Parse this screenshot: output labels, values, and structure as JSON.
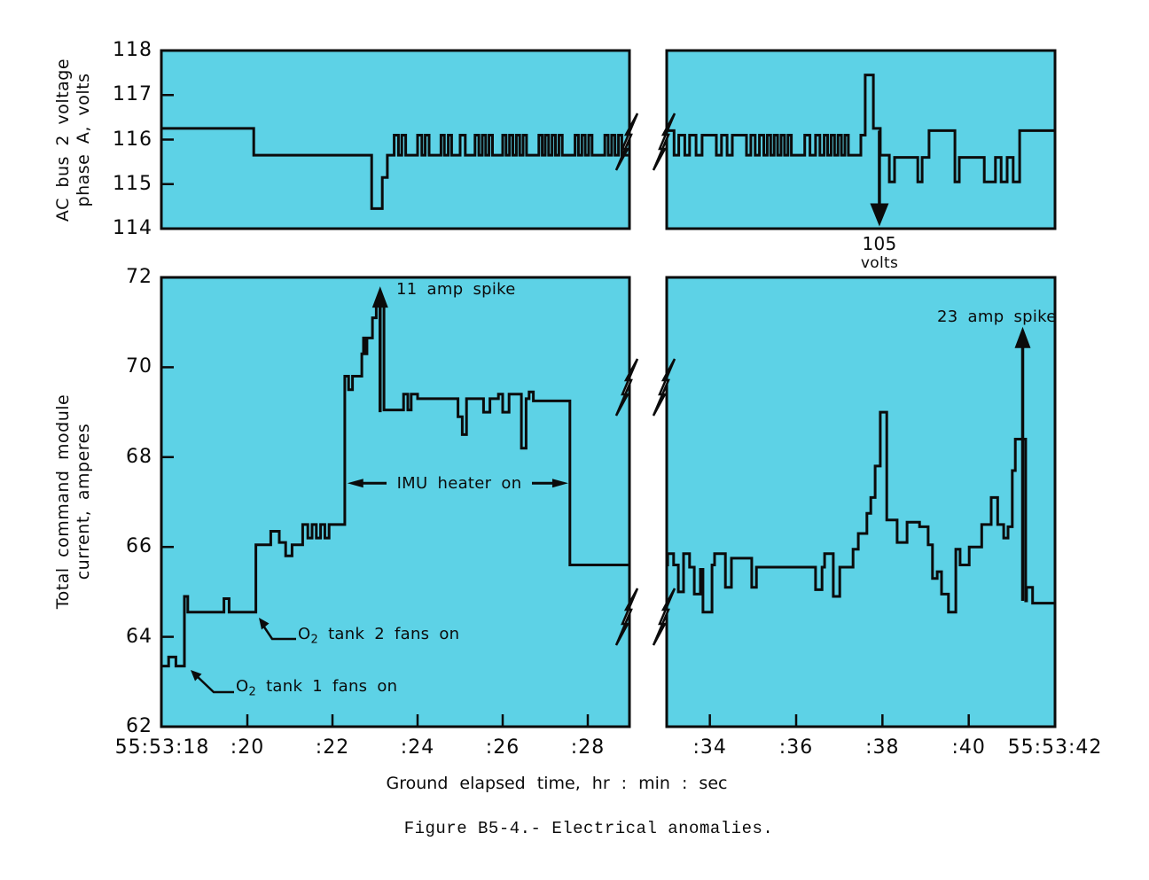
{
  "figure": {
    "caption": "Figure B5-4.- Electrical anomalies.",
    "colors": {
      "panel_fill": "#5dd2e6",
      "line": "#0b0b0b",
      "background": "#ffffff"
    }
  },
  "xaxis": {
    "title": "Ground elapsed time,  hr : min : sec",
    "left_ticks": [
      {
        "t": 18,
        "label": "55:53:18"
      },
      {
        "t": 20,
        "label": ":20"
      },
      {
        "t": 22,
        "label": ":22"
      },
      {
        "t": 24,
        "label": ":24"
      },
      {
        "t": 26,
        "label": ":26"
      },
      {
        "t": 28,
        "label": ":28"
      }
    ],
    "right_ticks": [
      {
        "t": 34,
        "label": ":34"
      },
      {
        "t": 36,
        "label": ":36"
      },
      {
        "t": 38,
        "label": ":38"
      },
      {
        "t": 40,
        "label": ":40"
      },
      {
        "t": 42,
        "label": "55:53:42"
      }
    ]
  },
  "chart_data": [
    {
      "type": "line",
      "id": "ac-bus-2-voltage",
      "ylabel_line1": "AC bus 2 voltage",
      "ylabel_line2": "phase A,  volts",
      "ylim": [
        114,
        118
      ],
      "yticks": [
        {
          "v": 118,
          "label": "118"
        },
        {
          "v": 117,
          "label": "117"
        },
        {
          "v": 116,
          "label": "116"
        },
        {
          "v": 115,
          "label": "115"
        },
        {
          "v": 114,
          "label": "114"
        }
      ],
      "segments": {
        "left": {
          "trange": [
            18,
            28.98
          ],
          "steps": [
            [
              18,
              116.25
            ],
            [
              20.15,
              115.65
            ],
            [
              22.92,
              114.45
            ],
            [
              23.17,
              115.15
            ],
            [
              23.29,
              115.65
            ],
            [
              23.45,
              116.1
            ],
            [
              23.55,
              115.65
            ],
            [
              23.63,
              116.1
            ],
            [
              23.72,
              115.65
            ],
            [
              24.0,
              116.1
            ],
            [
              24.1,
              115.65
            ],
            [
              24.18,
              116.1
            ],
            [
              24.27,
              115.65
            ],
            [
              24.55,
              116.1
            ],
            [
              24.63,
              115.65
            ],
            [
              24.72,
              116.1
            ],
            [
              24.8,
              115.65
            ],
            [
              25.0,
              116.1
            ],
            [
              25.12,
              115.65
            ],
            [
              25.35,
              116.1
            ],
            [
              25.44,
              115.65
            ],
            [
              25.52,
              116.1
            ],
            [
              25.6,
              115.65
            ],
            [
              25.68,
              116.1
            ],
            [
              25.76,
              115.65
            ],
            [
              26.0,
              116.1
            ],
            [
              26.08,
              115.65
            ],
            [
              26.16,
              116.1
            ],
            [
              26.24,
              115.65
            ],
            [
              26.32,
              116.1
            ],
            [
              26.4,
              115.65
            ],
            [
              26.48,
              116.1
            ],
            [
              26.56,
              115.65
            ],
            [
              26.85,
              116.1
            ],
            [
              26.93,
              115.65
            ],
            [
              27.0,
              116.1
            ],
            [
              27.08,
              115.65
            ],
            [
              27.16,
              116.1
            ],
            [
              27.24,
              115.65
            ],
            [
              27.32,
              116.1
            ],
            [
              27.4,
              115.65
            ],
            [
              27.7,
              116.1
            ],
            [
              27.78,
              115.65
            ],
            [
              27.86,
              116.1
            ],
            [
              27.94,
              115.65
            ],
            [
              28.02,
              116.1
            ],
            [
              28.1,
              115.65
            ],
            [
              28.4,
              116.1
            ],
            [
              28.48,
              115.65
            ],
            [
              28.56,
              116.1
            ],
            [
              28.64,
              115.65
            ],
            [
              28.72,
              116.1
            ],
            [
              28.8,
              115.65
            ],
            [
              28.98,
              115.65
            ]
          ]
        },
        "right": {
          "trange": [
            33.0,
            42.0
          ],
          "steps": [
            [
              33.0,
              116.2
            ],
            [
              33.17,
              115.65
            ],
            [
              33.28,
              116.1
            ],
            [
              33.42,
              115.65
            ],
            [
              33.53,
              116.1
            ],
            [
              33.68,
              115.65
            ],
            [
              33.82,
              116.1
            ],
            [
              34.15,
              115.65
            ],
            [
              34.27,
              116.1
            ],
            [
              34.4,
              115.65
            ],
            [
              34.52,
              116.1
            ],
            [
              34.85,
              115.65
            ],
            [
              34.95,
              116.1
            ],
            [
              35.05,
              115.65
            ],
            [
              35.15,
              116.1
            ],
            [
              35.25,
              115.65
            ],
            [
              35.33,
              116.1
            ],
            [
              35.41,
              115.65
            ],
            [
              35.49,
              116.1
            ],
            [
              35.57,
              115.65
            ],
            [
              35.65,
              116.1
            ],
            [
              35.73,
              115.65
            ],
            [
              35.81,
              116.1
            ],
            [
              35.89,
              115.65
            ],
            [
              36.2,
              116.1
            ],
            [
              36.32,
              115.65
            ],
            [
              36.45,
              116.1
            ],
            [
              36.55,
              115.65
            ],
            [
              36.65,
              116.1
            ],
            [
              36.73,
              115.65
            ],
            [
              36.81,
              116.1
            ],
            [
              36.89,
              115.65
            ],
            [
              36.97,
              116.1
            ],
            [
              37.05,
              115.65
            ],
            [
              37.13,
              116.1
            ],
            [
              37.21,
              115.65
            ],
            [
              37.5,
              116.1
            ],
            [
              37.6,
              117.45
            ],
            [
              37.79,
              116.25
            ],
            [
              37.95,
              115.65
            ],
            [
              38.16,
              115.05
            ],
            [
              38.28,
              115.6
            ],
            [
              38.82,
              115.05
            ],
            [
              38.92,
              115.6
            ],
            [
              39.08,
              116.2
            ],
            [
              39.68,
              115.05
            ],
            [
              39.78,
              115.6
            ],
            [
              40.36,
              115.05
            ],
            [
              40.62,
              115.6
            ],
            [
              40.75,
              115.05
            ],
            [
              40.89,
              115.6
            ],
            [
              41.03,
              115.05
            ],
            [
              41.18,
              116.2
            ],
            [
              42.0,
              116.2
            ]
          ]
        }
      },
      "annotations": [
        {
          "type": "down-arrow-offscale",
          "t": 37.93,
          "from": 116.2,
          "to": 114.05,
          "label": "105",
          "sublabel": "volts"
        }
      ]
    },
    {
      "type": "line",
      "id": "total-command-module-current",
      "ylabel_line1": "Total command module",
      "ylabel_line2": "current,  amperes",
      "ylim": [
        62,
        72
      ],
      "yticks": [
        {
          "v": 72,
          "label": "72"
        },
        {
          "v": 70,
          "label": "70"
        },
        {
          "v": 68,
          "label": "68"
        },
        {
          "v": 66,
          "label": "66"
        },
        {
          "v": 64,
          "label": "64"
        },
        {
          "v": 62,
          "label": "62"
        }
      ],
      "segments": {
        "left": {
          "trange": [
            18,
            28.98
          ],
          "steps": [
            [
              18,
              63.35
            ],
            [
              18.15,
              63.55
            ],
            [
              18.32,
              63.35
            ],
            [
              18.52,
              64.9
            ],
            [
              18.6,
              64.55
            ],
            [
              19.45,
              64.85
            ],
            [
              19.57,
              64.55
            ],
            [
              20.2,
              66.05
            ],
            [
              20.55,
              66.35
            ],
            [
              20.75,
              66.1
            ],
            [
              20.9,
              65.8
            ],
            [
              21.05,
              66.05
            ],
            [
              21.3,
              66.5
            ],
            [
              21.42,
              66.2
            ],
            [
              21.52,
              66.5
            ],
            [
              21.62,
              66.2
            ],
            [
              21.72,
              66.5
            ],
            [
              21.82,
              66.2
            ],
            [
              21.92,
              66.5
            ],
            [
              22.29,
              69.8
            ],
            [
              22.38,
              69.5
            ],
            [
              22.47,
              69.8
            ],
            [
              22.69,
              70.3
            ],
            [
              22.73,
              70.65
            ],
            [
              22.77,
              70.3
            ],
            [
              22.81,
              70.65
            ],
            [
              22.94,
              71.1
            ],
            [
              23.03,
              71.45
            ],
            [
              23.21,
              69.05
            ],
            [
              23.67,
              69.4
            ],
            [
              23.77,
              69.05
            ],
            [
              23.85,
              69.4
            ],
            [
              24.0,
              69.3
            ],
            [
              24.95,
              68.9
            ],
            [
              25.05,
              68.5
            ],
            [
              25.15,
              69.3
            ],
            [
              25.55,
              69.0
            ],
            [
              25.7,
              69.3
            ],
            [
              25.9,
              69.4
            ],
            [
              26.0,
              69.0
            ],
            [
              26.15,
              69.4
            ],
            [
              26.44,
              68.2
            ],
            [
              26.55,
              69.3
            ],
            [
              26.62,
              69.45
            ],
            [
              26.72,
              69.25
            ],
            [
              27.58,
              65.6
            ],
            [
              28.98,
              65.6
            ]
          ]
        },
        "right": {
          "trange": [
            33.0,
            42.0
          ],
          "steps": [
            [
              33.0,
              65.6
            ],
            [
              33.02,
              65.85
            ],
            [
              33.16,
              65.6
            ],
            [
              33.27,
              65.0
            ],
            [
              33.39,
              65.85
            ],
            [
              33.53,
              65.55
            ],
            [
              33.64,
              64.95
            ],
            [
              33.78,
              65.5
            ],
            [
              33.84,
              64.55
            ],
            [
              34.05,
              65.6
            ],
            [
              34.11,
              65.85
            ],
            [
              34.36,
              65.1
            ],
            [
              34.5,
              65.75
            ],
            [
              34.97,
              65.1
            ],
            [
              35.08,
              65.55
            ],
            [
              36.45,
              65.05
            ],
            [
              36.6,
              65.55
            ],
            [
              36.66,
              65.85
            ],
            [
              36.86,
              64.9
            ],
            [
              37.01,
              65.55
            ],
            [
              37.32,
              65.95
            ],
            [
              37.44,
              66.3
            ],
            [
              37.64,
              66.75
            ],
            [
              37.73,
              67.1
            ],
            [
              37.83,
              67.8
            ],
            [
              37.95,
              69.0
            ],
            [
              38.1,
              66.6
            ],
            [
              38.34,
              66.1
            ],
            [
              38.57,
              66.55
            ],
            [
              38.86,
              66.45
            ],
            [
              39.06,
              66.05
            ],
            [
              39.16,
              65.3
            ],
            [
              39.27,
              65.45
            ],
            [
              39.37,
              64.95
            ],
            [
              39.53,
              64.55
            ],
            [
              39.7,
              65.95
            ],
            [
              39.8,
              65.6
            ],
            [
              40.01,
              66.0
            ],
            [
              40.3,
              66.5
            ],
            [
              40.52,
              67.1
            ],
            [
              40.67,
              66.5
            ],
            [
              40.81,
              66.2
            ],
            [
              40.91,
              66.45
            ],
            [
              41.01,
              67.7
            ],
            [
              41.08,
              68.4
            ],
            [
              41.32,
              64.8
            ],
            [
              41.34,
              65.1
            ],
            [
              41.48,
              64.75
            ],
            [
              42.0,
              64.75
            ]
          ]
        }
      },
      "annotations": [
        {
          "type": "up-arrow-offscale",
          "t": 23.12,
          "from": 69.0,
          "to": 71.8,
          "label": "11 amp spike"
        },
        {
          "type": "up-arrow-offscale",
          "t": 41.25,
          "from": 64.8,
          "to": 70.9,
          "label": "23 amp spike"
        },
        {
          "type": "span-arrow",
          "t_start": 22.37,
          "t_end": 27.52,
          "value": 67.42,
          "label": "IMU heater on"
        },
        {
          "type": "leader",
          "event_t": 20.3,
          "event_value": 64.45,
          "label_pre": "O",
          "label_sub": "2",
          "label_rest": " tank 2 fans on"
        },
        {
          "type": "leader",
          "event_t": 18.67,
          "event_value": 63.25,
          "label_pre": "O",
          "label_sub": "2",
          "label_rest": " tank 1 fans on"
        }
      ]
    }
  ]
}
